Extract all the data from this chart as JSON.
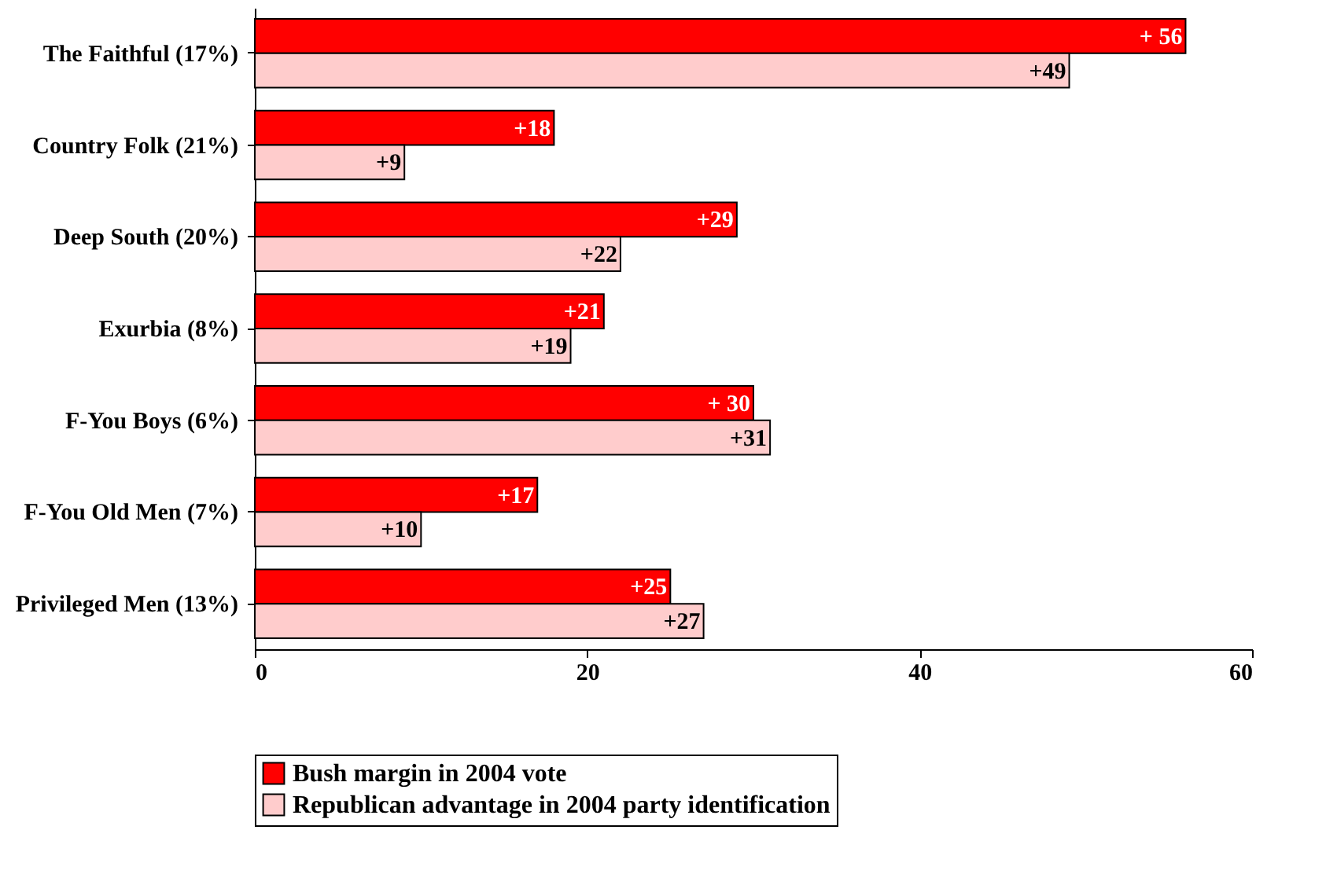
{
  "chart_data": {
    "type": "bar",
    "orientation": "horizontal",
    "categories": [
      "The Faithful  (17%)",
      "Country Folk  (21%)",
      "Deep South  (20%)",
      "Exurbia  (8%)",
      "F-You Boys  (6%)",
      "F-You Old Men  (7%)",
      "Privileged Men  (13%)"
    ],
    "series": [
      {
        "name": "Bush margin in 2004 vote",
        "color": "#ff0000",
        "values": [
          56,
          18,
          29,
          21,
          30,
          17,
          25
        ],
        "value_labels": [
          "+ 56",
          "+18",
          "+29",
          "+21",
          "+ 30",
          "+17",
          "+25"
        ]
      },
      {
        "name": "Republican advantage in 2004 party identification",
        "color": "#ffcccc",
        "values": [
          49,
          9,
          22,
          19,
          31,
          10,
          27
        ],
        "value_labels": [
          "+49",
          "+9",
          "+22",
          "+19",
          "+31",
          "+10",
          "+27"
        ]
      }
    ],
    "xlim": [
      0,
      60
    ],
    "xticks": [
      0,
      20,
      40,
      60
    ],
    "grid": false,
    "legend": "bottom"
  }
}
